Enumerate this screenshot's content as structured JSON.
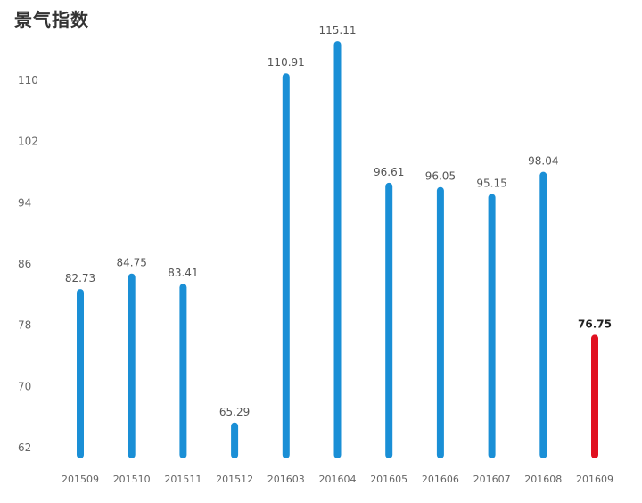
{
  "chart_data": {
    "type": "bar",
    "title": "景气指数",
    "xlabel": "",
    "ylabel": "",
    "ylim": [
      58,
      120
    ],
    "yticks": [
      62,
      70,
      78,
      86,
      94,
      102,
      110
    ],
    "categories": [
      "201509",
      "201510",
      "201511",
      "201512",
      "201603",
      "201604",
      "201605",
      "201606",
      "201607",
      "201608",
      "201609"
    ],
    "values": [
      82.73,
      84.75,
      83.41,
      65.29,
      110.91,
      115.11,
      96.61,
      96.05,
      95.15,
      98.04,
      76.75
    ],
    "data_labels": [
      "82.73",
      "84.75",
      "83.41",
      "65.29",
      "110.91",
      "115.11",
      "96.61",
      "96.05",
      "95.15",
      "98.04",
      "76.75"
    ],
    "grid": false,
    "highlight_index": 10,
    "colors": {
      "bar": "#1a8fd6",
      "highlight": "#e01020"
    }
  }
}
